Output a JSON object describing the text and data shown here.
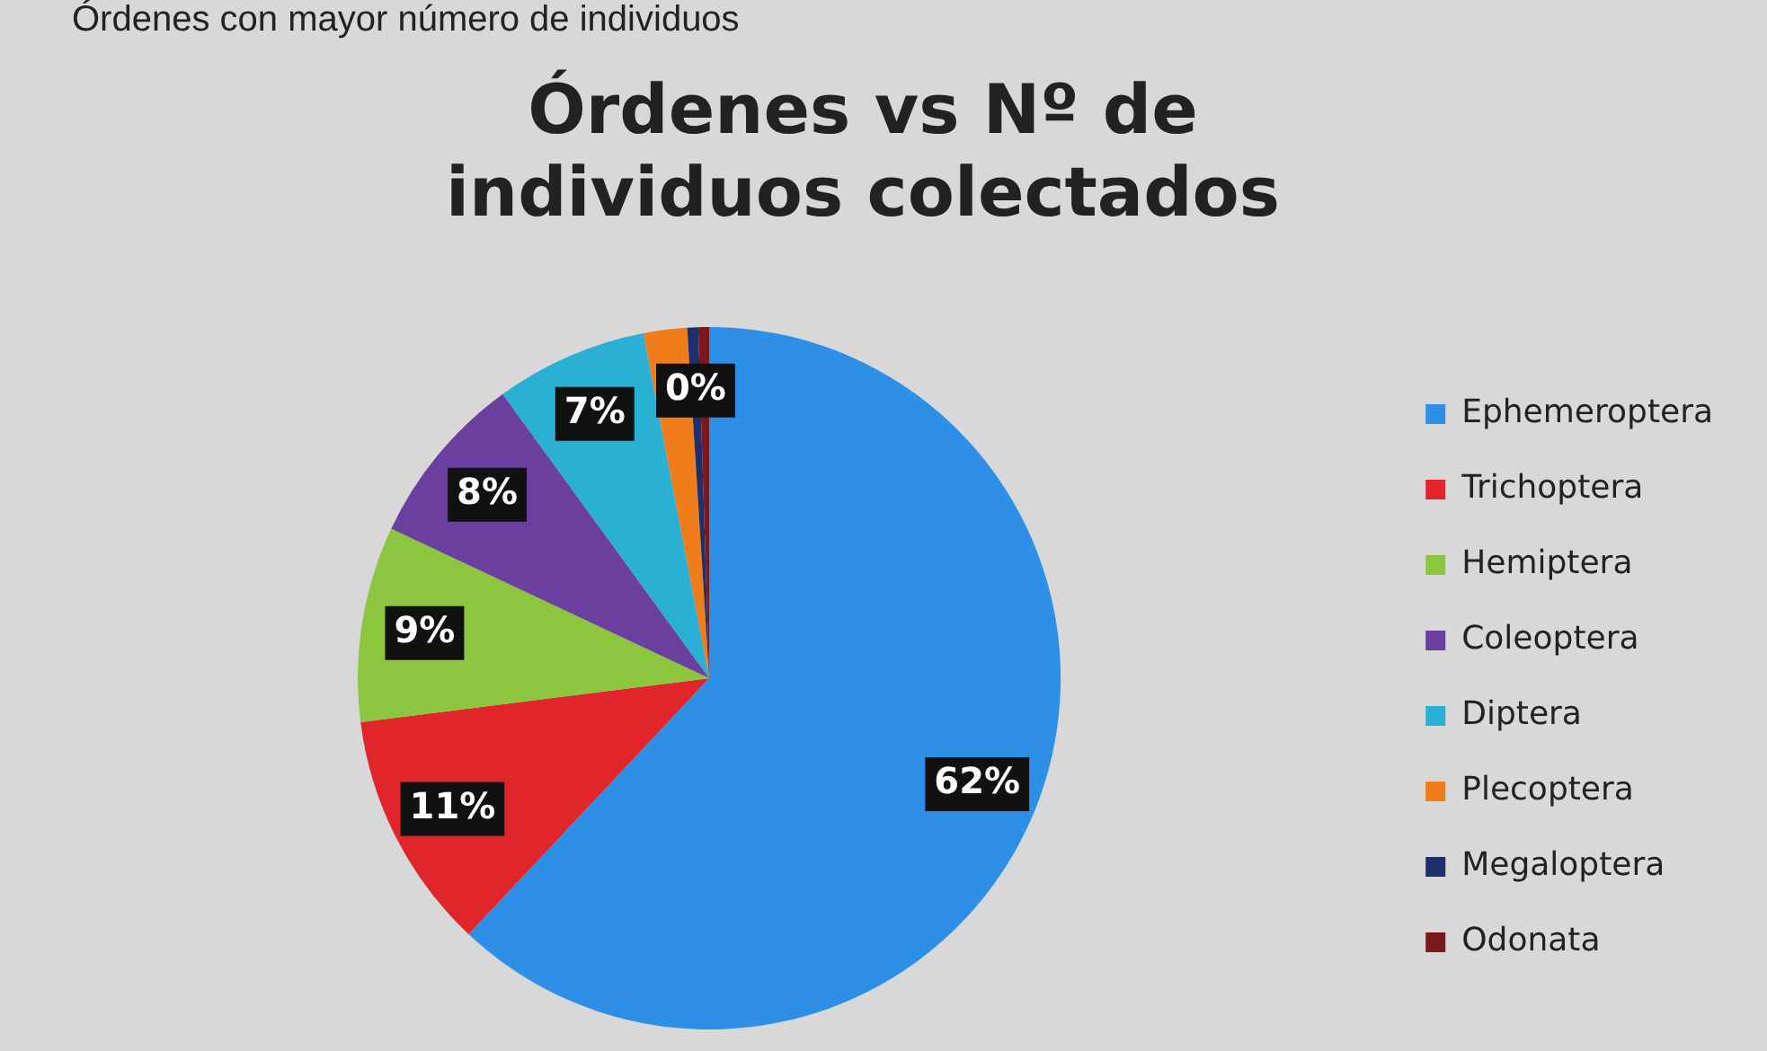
{
  "chart_data": {
    "type": "pie",
    "title": "Órdenes vs Nº de individuos colectados",
    "annotations": [
      "Órdenes con mayor número de individuos"
    ],
    "categories": [
      "Ephemeroptera",
      "Trichoptera",
      "Hemiptera",
      "Coleoptera",
      "Diptera",
      "Plecoptera",
      "Megaloptera",
      "Odonata"
    ],
    "values": [
      62,
      11,
      9,
      8,
      7,
      2,
      0.5,
      0.5
    ],
    "value_labels": [
      "62%",
      "11%",
      "9%",
      "8%",
      "7%",
      null,
      "0%",
      null
    ],
    "colors": [
      "#2e8fe6",
      "#e0262b",
      "#8cc63f",
      "#6a3fa0",
      "#2ab0d4",
      "#f07d1a",
      "#1f2f6b",
      "#7a1a1a"
    ],
    "legend": "right"
  }
}
